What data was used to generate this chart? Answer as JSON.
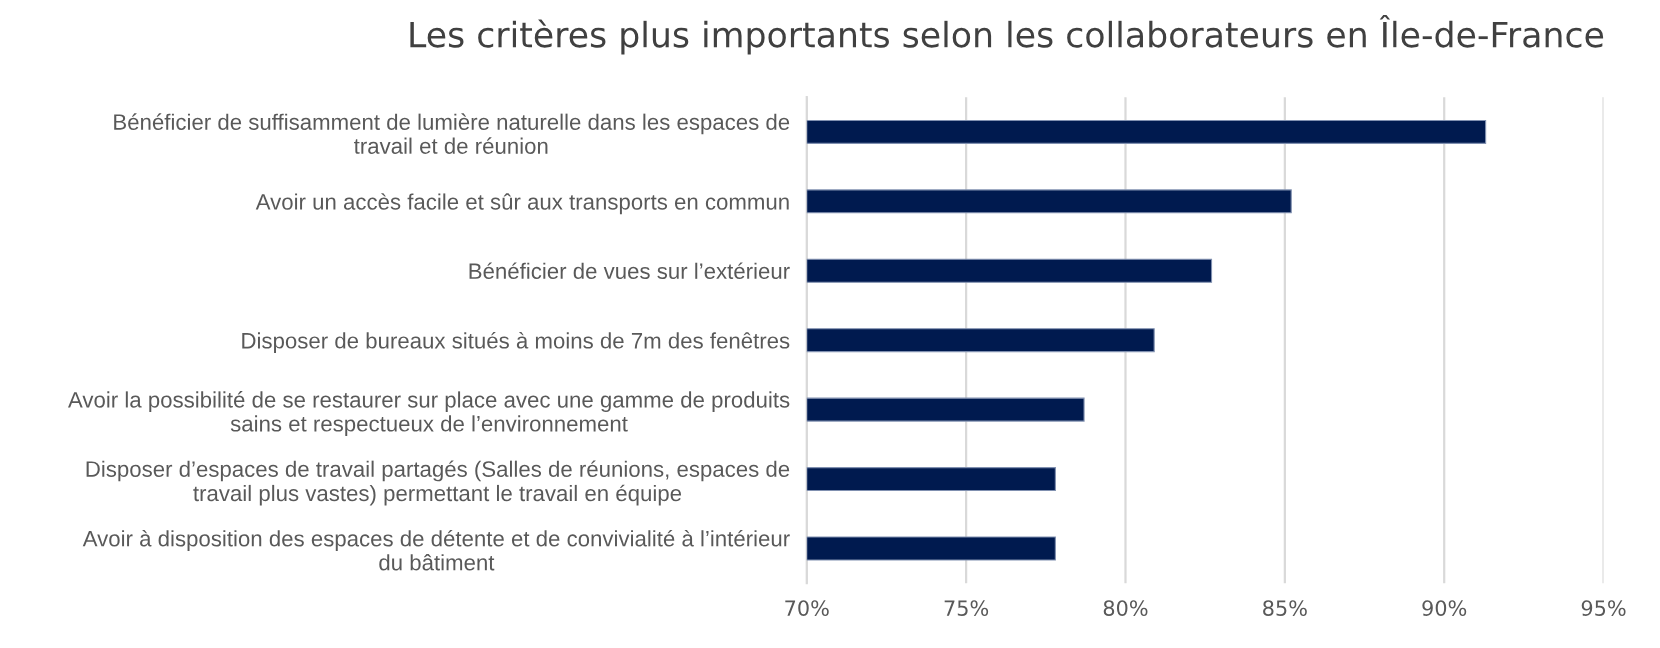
{
  "chart_data": {
    "type": "bar",
    "orientation": "horizontal",
    "title": "Les critères plus importants selon les collaborateurs en Île-de-France",
    "categories": [
      "Bénéficier de suffisamment de lumière naturelle dans les espaces de\ntravail et de réunion",
      "Avoir un accès facile et sûr aux transports en commun",
      "Bénéficier de vues sur l’extérieur",
      "Disposer de bureaux situés à moins de 7m des fenêtres",
      "Avoir la possibilité de se restaurer sur place avec une gamme de produits\nsains et respectueux de l’environnement",
      "Disposer d’espaces de travail partagés (Salles de réunions, espaces de\ntravail plus vastes) permettant le travail en équipe",
      "Avoir à disposition des espaces de détente et de convivialité à l’intérieur\ndu bâtiment"
    ],
    "values": [
      91.3,
      85.2,
      82.7,
      80.9,
      78.7,
      77.8,
      77.8
    ],
    "color": "#001a4f",
    "xlim": [
      70,
      95
    ],
    "xticks": [
      {
        "value": 70,
        "label": "70%"
      },
      {
        "value": 75,
        "label": "75%"
      },
      {
        "value": 80,
        "label": "80%"
      },
      {
        "value": 85,
        "label": "85%"
      },
      {
        "value": 90,
        "label": "90%"
      },
      {
        "value": 95,
        "label": "95%"
      }
    ],
    "grid": "x"
  }
}
